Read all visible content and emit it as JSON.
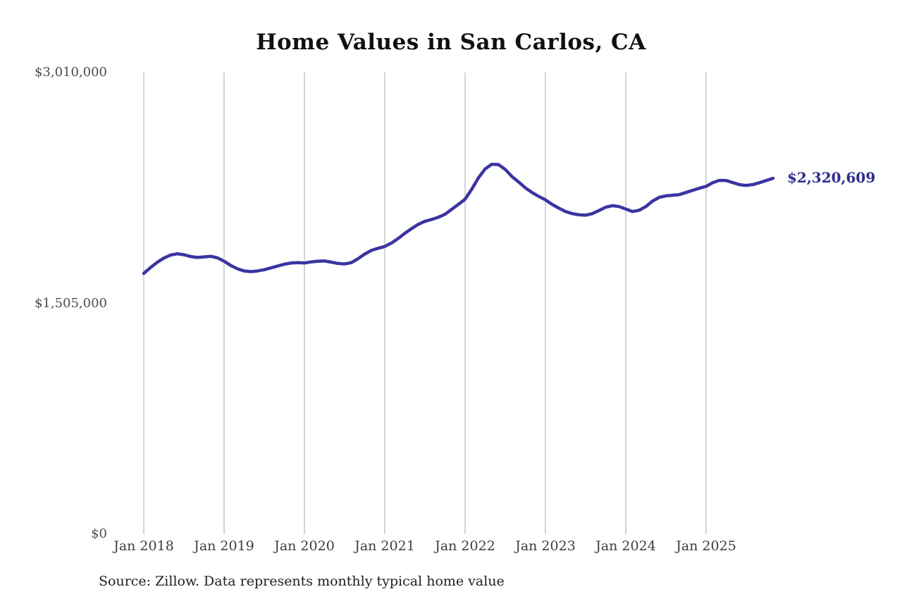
{
  "title": "Home Values in San Carlos, CA",
  "source_note": "Source: Zillow. Data represents monthly typical home value",
  "end_label": "$2,320,609",
  "colors": {
    "line": "#3b34a2",
    "grid": "#c6c6c6",
    "axis_text": "#4d4d4d",
    "end_label_text": "#2c2c8e",
    "background": "#ffffff"
  },
  "chart_data": {
    "type": "line",
    "title": "Home Values in San Carlos, CA",
    "xlabel": "",
    "ylabel": "",
    "ylim": [
      0,
      3010000
    ],
    "grid": "vertical-only",
    "legend": "none",
    "x_start_month": "Jan 2018",
    "x_interval": "month",
    "x_tick_labels": [
      "Jan 2018",
      "Jan 2019",
      "Jan 2020",
      "Jan 2021",
      "Jan 2022",
      "Jan 2023",
      "Jan 2024",
      "Jan 2025"
    ],
    "y_ticks": [
      {
        "label": "$0",
        "value": 0
      },
      {
        "label": "$1,505,000",
        "value": 1505000
      },
      {
        "label": "$3,010,000",
        "value": 3010000
      }
    ],
    "last_value_label": "$2,320,609",
    "series": [
      {
        "name": "Monthly typical home value",
        "values": [
          1700000,
          1738000,
          1772000,
          1800000,
          1820000,
          1828000,
          1822000,
          1810000,
          1804000,
          1808000,
          1812000,
          1802000,
          1780000,
          1752000,
          1730000,
          1716000,
          1712000,
          1716000,
          1724000,
          1736000,
          1748000,
          1760000,
          1768000,
          1770000,
          1768000,
          1775000,
          1780000,
          1781000,
          1774000,
          1765000,
          1762000,
          1770000,
          1796000,
          1826000,
          1850000,
          1864000,
          1876000,
          1898000,
          1928000,
          1962000,
          1992000,
          2020000,
          2040000,
          2052000,
          2066000,
          2086000,
          2118000,
          2150000,
          2184000,
          2250000,
          2324000,
          2382000,
          2412000,
          2410000,
          2378000,
          2332000,
          2296000,
          2258000,
          2228000,
          2202000,
          2180000,
          2150000,
          2126000,
          2104000,
          2090000,
          2082000,
          2080000,
          2090000,
          2110000,
          2132000,
          2142000,
          2136000,
          2120000,
          2104000,
          2112000,
          2136000,
          2172000,
          2196000,
          2206000,
          2210000,
          2214000,
          2228000,
          2242000,
          2256000,
          2268000,
          2292000,
          2307000,
          2306000,
          2292000,
          2279000,
          2274000,
          2280000,
          2292000,
          2306000,
          2320609
        ]
      }
    ]
  }
}
